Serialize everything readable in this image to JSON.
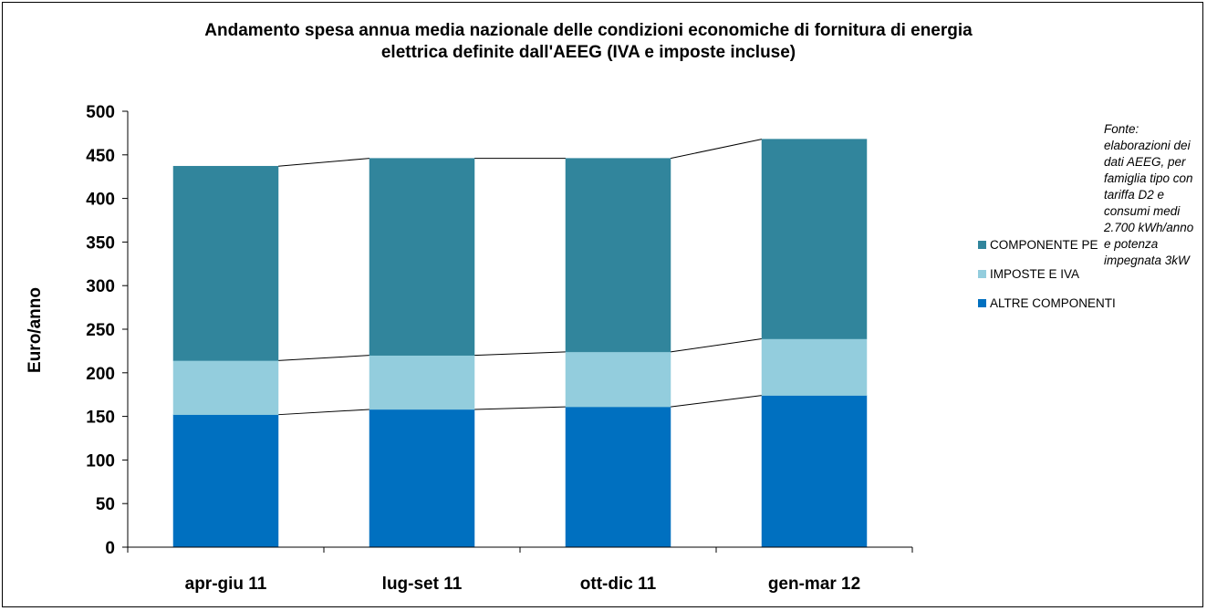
{
  "chart_data": {
    "type": "bar",
    "stacked": true,
    "title_lines": [
      "Andamento spesa annua media nazionale delle condizioni economiche di fornitura di energia",
      "elettrica definite dall'AEEG (IVA e imposte incluse)"
    ],
    "ylabel": "Euro/anno",
    "xlabel": "",
    "categories": [
      "apr-giu 11",
      "lug-set 11",
      "ott-dic 11",
      "gen-mar 12"
    ],
    "ylim": [
      0,
      500
    ],
    "yticks": [
      0,
      50,
      100,
      150,
      200,
      250,
      300,
      350,
      400,
      450,
      500
    ],
    "grid": false,
    "series_lines": true,
    "legend_position": "right",
    "series": [
      {
        "name": "ALTRE COMPONENTI",
        "color": "#0070c0",
        "values": [
          152,
          158,
          161,
          174
        ]
      },
      {
        "name": "IMPOSTE E IVA",
        "color": "#93cddd",
        "values": [
          62,
          62,
          63,
          65
        ]
      },
      {
        "name": "COMPONENTE PE",
        "color": "#31859c",
        "values": [
          223,
          226,
          222,
          229
        ]
      }
    ],
    "legend_order": [
      "COMPONENTE PE",
      "IMPOSTE E IVA",
      "ALTRE COMPONENTI"
    ],
    "annotation": "Fonte: elaborazioni dei dati AEEG, per famiglia tipo con tariffa D2 e consumi medi 2.700 kWh/anno e potenza impegnata 3kW"
  }
}
